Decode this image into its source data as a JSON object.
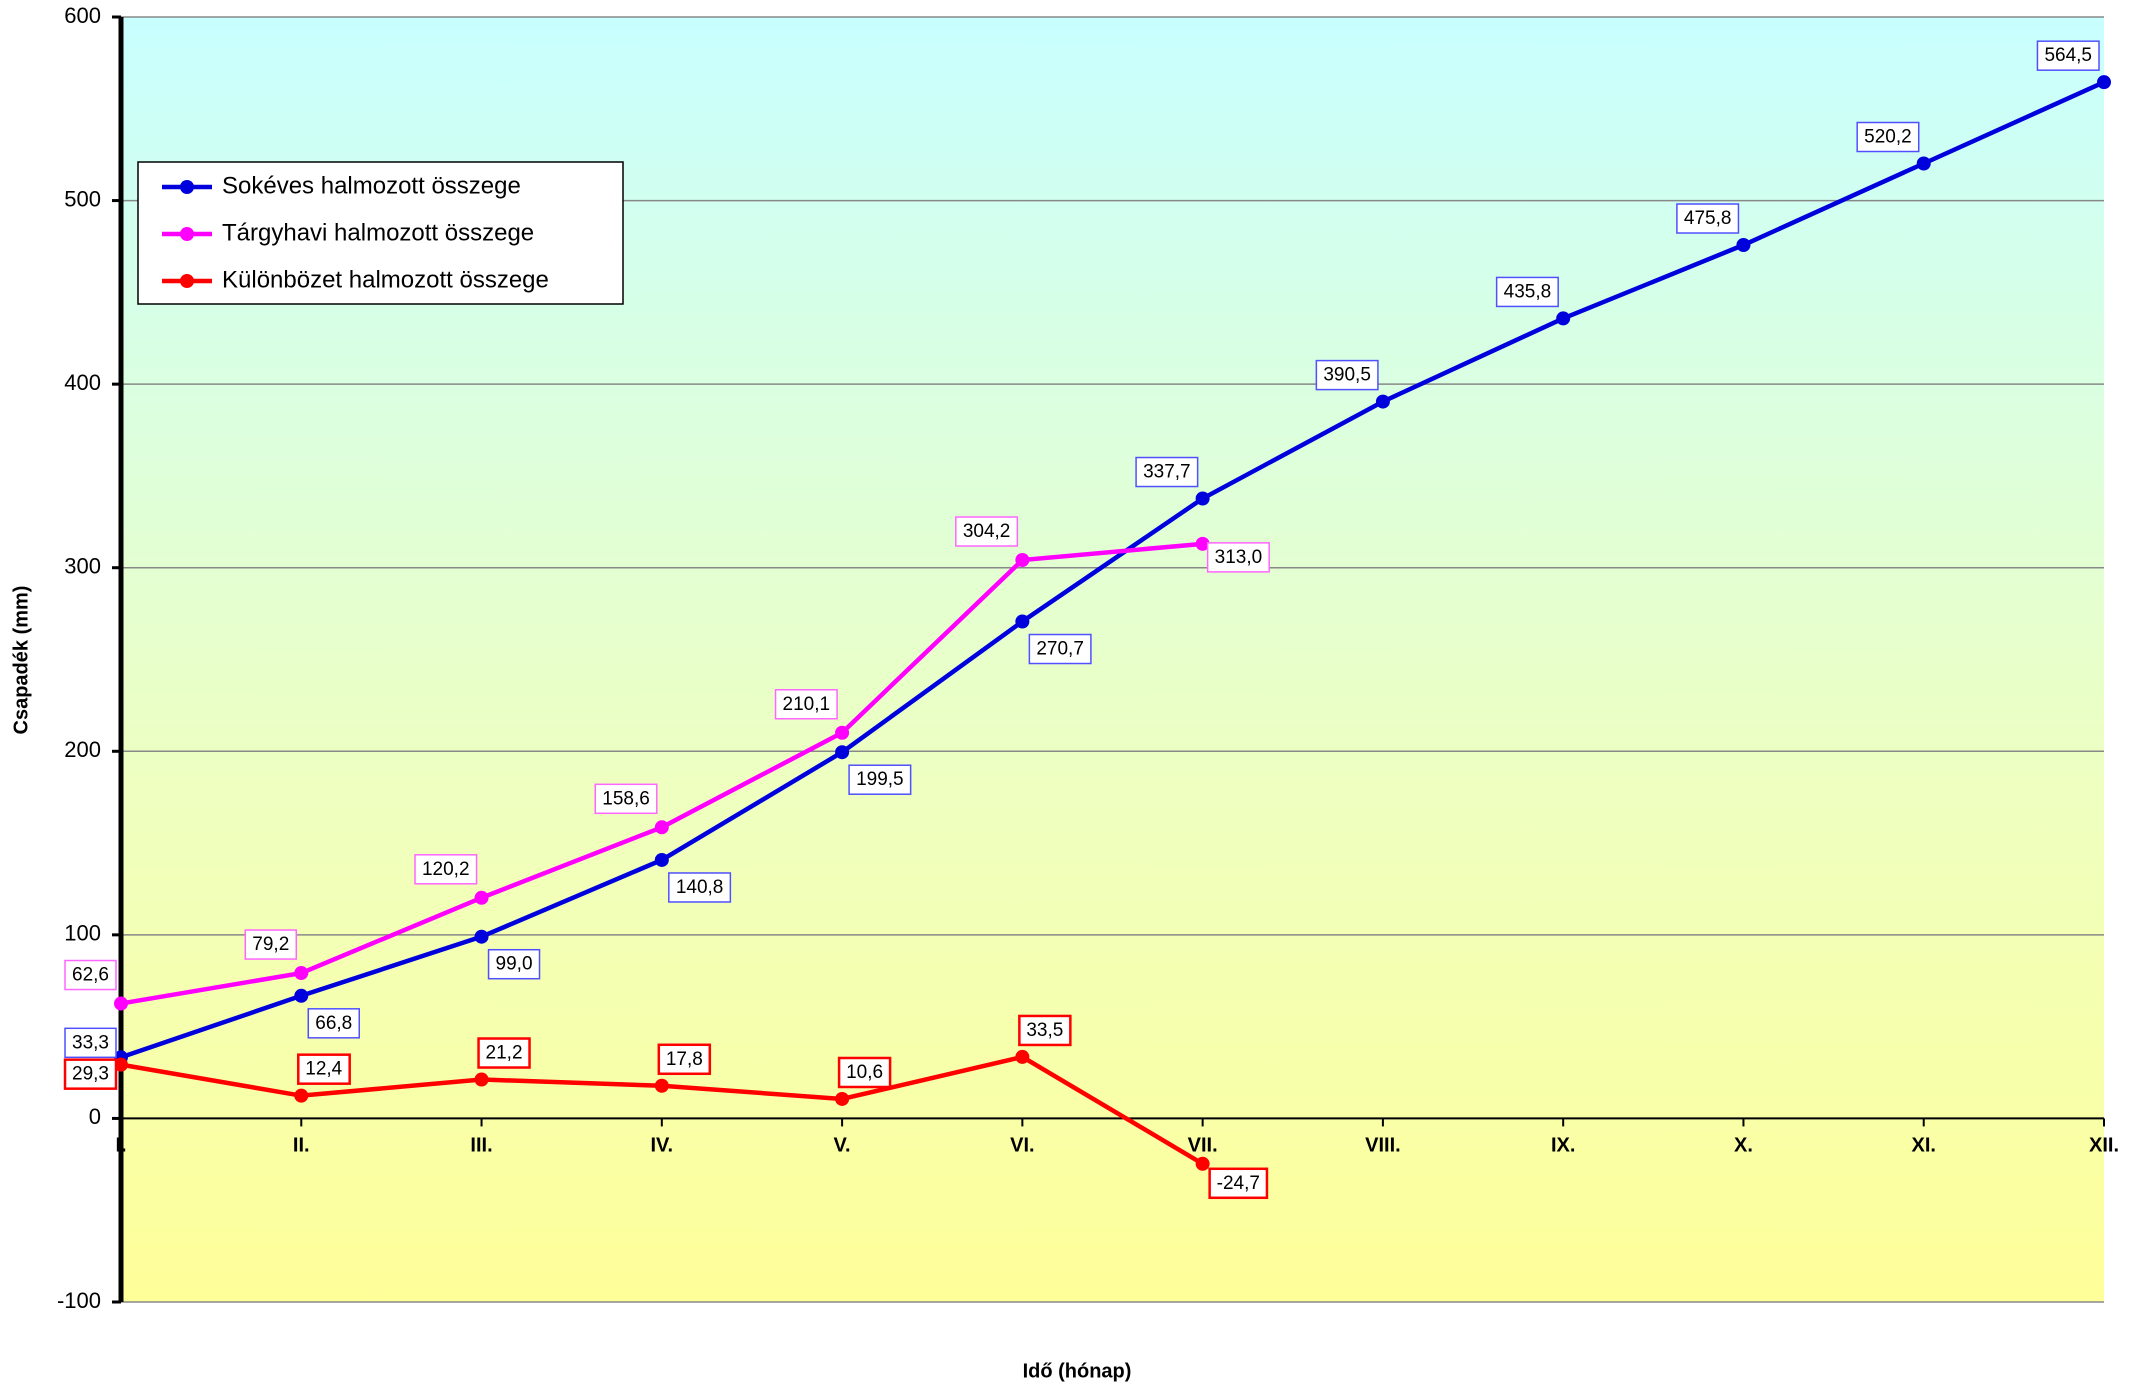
{
  "chart_data": {
    "type": "line",
    "x_label": "Idő (hónap)",
    "y_label": "Csapadék (mm)",
    "categories": [
      "I.",
      "II.",
      "III.",
      "IV.",
      "V.",
      "VI.",
      "VII.",
      "VIII.",
      "IX.",
      "X.",
      "XI.",
      "XII."
    ],
    "ylim": [
      -100,
      600
    ],
    "yticks": [
      -100,
      0,
      100,
      200,
      300,
      400,
      500,
      600
    ],
    "grid": true,
    "legend": "upper left",
    "series": [
      {
        "name": "Sokéves halmozott összege",
        "color": "#0000dd",
        "values": [
          33.3,
          66.8,
          99.0,
          140.8,
          199.5,
          270.7,
          337.7,
          390.5,
          435.8,
          475.8,
          520.2,
          564.5
        ],
        "value_labels": [
          "33,3",
          "66,8",
          "99,0",
          "140,8",
          "199,5",
          "270,7",
          "337,7",
          "390,5",
          "435,8",
          "475,8",
          "520,2",
          "564,5"
        ]
      },
      {
        "name": "Tárgyhavi halmozott összege",
        "color": "#ff00ff",
        "values": [
          62.6,
          79.2,
          120.2,
          158.6,
          210.1,
          304.2,
          313.0,
          null,
          null,
          null,
          null,
          null
        ],
        "value_labels": [
          "62,6",
          "79,2",
          "120,2",
          "158,6",
          "210,1",
          "304,2",
          "313,0",
          null,
          null,
          null,
          null,
          null
        ]
      },
      {
        "name": "Különbözet halmozott összege",
        "color": "#ff0000",
        "values": [
          29.3,
          12.4,
          21.2,
          17.8,
          10.6,
          33.5,
          -24.7,
          null,
          null,
          null,
          null,
          null
        ],
        "value_labels": [
          "29,3",
          "12,4",
          "21,2",
          "17,8",
          "10,6",
          "33,5",
          "-24,7",
          null,
          null,
          null,
          null,
          null
        ]
      }
    ]
  }
}
